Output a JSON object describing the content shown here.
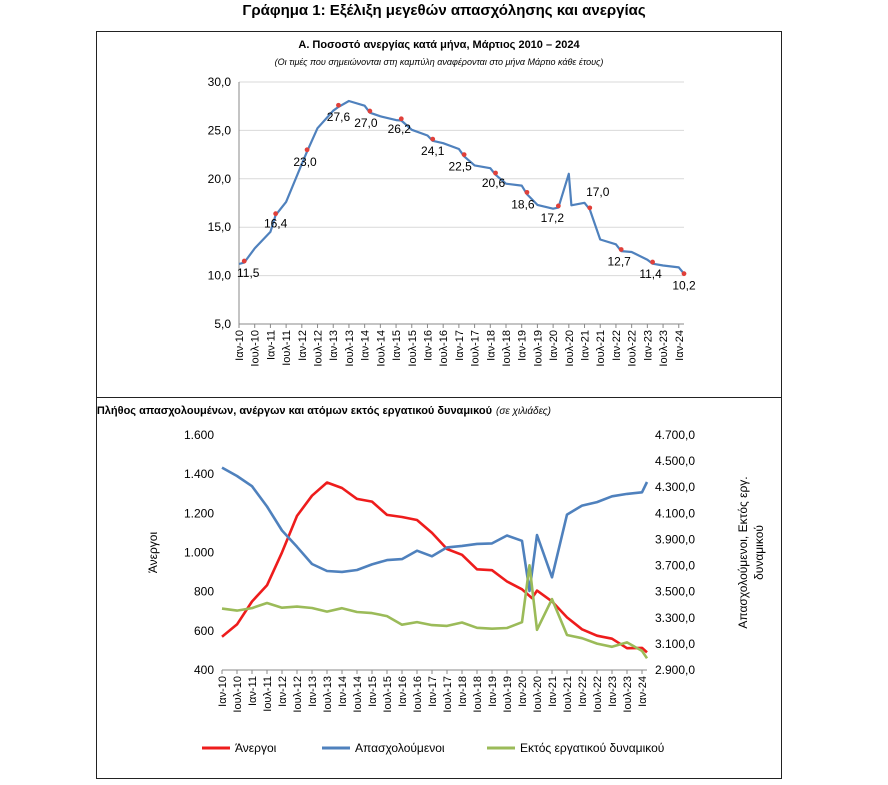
{
  "figure_title": "Γράφημα 1: Εξέλιξη μεγεθών απασχόλησης και ανεργίας",
  "colors": {
    "unemployment_rate": "#4f81bd",
    "marker": "#e0403a",
    "unemployed": "#ee1c1c",
    "employed": "#4f81bd",
    "inactive": "#9bbb59",
    "grid": "#d9d9d9"
  },
  "chart_data": [
    {
      "type": "line",
      "title": "Α. Ποσοστό ανεργίας κατά μήνα, Μάρτιος 2010 – 2024",
      "subtitle": "(Οι τιμές που σημειώνονται στη καμπύλη αναφέρονται στο μήνα Μάρτιο κάθε έτους)",
      "ylim": [
        5,
        30
      ],
      "yticks": [
        "5,0",
        "10,0",
        "15,0",
        "20,0",
        "25,0",
        "30,0"
      ],
      "ytick_values": [
        5,
        10,
        15,
        20,
        25,
        30
      ],
      "xticks": [
        "Ιαν-10",
        "Ιουλ-10",
        "Ιαν-11",
        "Ιουλ-11",
        "Ιαν-12",
        "Ιουλ-12",
        "Ιαν-13",
        "Ιουλ-13",
        "Ιαν-14",
        "Ιουλ-14",
        "Ιαν-15",
        "Ιουλ-15",
        "Ιαν-16",
        "Ιουλ-16",
        "Ιαν-17",
        "Ιουλ-17",
        "Ιαν-18",
        "Ιουλ-18",
        "Ιαν-19",
        "Ιουλ-19",
        "Ιαν-20",
        "Ιουλ-20",
        "Ιαν-21",
        "Ιουλ-21",
        "Ιαν-22",
        "Ιουλ-22",
        "Ιαν-23",
        "Ιουλ-23",
        "Ιαν-24"
      ],
      "grid": true,
      "series": [
        {
          "points": [
            [
              "Ιαν-10",
              11.2
            ],
            [
              "Μαρ-10",
              11.5
            ],
            [
              "Ιουλ-10",
              12.8
            ],
            [
              "Ιαν-11",
              14.5
            ],
            [
              "Μαρ-11",
              16.4
            ],
            [
              "Ιουλ-11",
              17.6
            ],
            [
              "Ιαν-12",
              21.5
            ],
            [
              "Μαρ-12",
              23.0
            ],
            [
              "Ιουλ-12",
              25.2
            ],
            [
              "Ιαν-13",
              27.0
            ],
            [
              "Μαρ-13",
              27.6
            ],
            [
              "Ιουλ-13",
              28.0
            ],
            [
              "Ιαν-14",
              27.5
            ],
            [
              "Μαρ-14",
              27.0
            ],
            [
              "Ιουλ-14",
              26.4
            ],
            [
              "Ιαν-15",
              26.0
            ],
            [
              "Μαρ-15",
              26.2
            ],
            [
              "Ιουλ-15",
              25.0
            ],
            [
              "Ιαν-16",
              24.4
            ],
            [
              "Μαρ-16",
              24.1
            ],
            [
              "Ιουλ-16",
              23.6
            ],
            [
              "Ιαν-17",
              23.0
            ],
            [
              "Μαρ-17",
              22.5
            ],
            [
              "Ιουλ-17",
              21.3
            ],
            [
              "Ιαν-18",
              21.0
            ],
            [
              "Μαρ-18",
              20.6
            ],
            [
              "Ιουλ-18",
              19.4
            ],
            [
              "Ιαν-19",
              19.2
            ],
            [
              "Μαρ-19",
              18.6
            ],
            [
              "Ιουλ-19",
              17.2
            ],
            [
              "Ιαν-20",
              16.8
            ],
            [
              "Μαρ-20",
              17.2
            ],
            [
              "Ιουλ-20",
              20.4
            ],
            [
              "Αυγ-20",
              17.2
            ],
            [
              "Ιαν-21",
              17.4
            ],
            [
              "Μαρ-21",
              17.0
            ],
            [
              "Ιουλ-21",
              13.6
            ],
            [
              "Ιαν-22",
              13.1
            ],
            [
              "Μαρ-22",
              12.7
            ],
            [
              "Ιουλ-22",
              12.3
            ],
            [
              "Ιαν-23",
              11.5
            ],
            [
              "Μαρ-23",
              11.4
            ],
            [
              "Ιουλ-23",
              10.9
            ],
            [
              "Ιαν-24",
              10.7
            ],
            [
              "Μαρ-24",
              10.2
            ]
          ]
        }
      ],
      "annotations": [
        {
          "x": "Μαρ-10",
          "y": 11.5,
          "label": "11,5"
        },
        {
          "x": "Μαρ-11",
          "y": 16.4,
          "label": "16,4"
        },
        {
          "x": "Μαρ-12",
          "y": 23.0,
          "label": "23,0"
        },
        {
          "x": "Μαρ-13",
          "y": 27.6,
          "label": "27,6"
        },
        {
          "x": "Μαρ-14",
          "y": 27.0,
          "label": "27,0"
        },
        {
          "x": "Μαρ-15",
          "y": 26.2,
          "label": "26,2"
        },
        {
          "x": "Μαρ-16",
          "y": 24.1,
          "label": "24,1"
        },
        {
          "x": "Μαρ-17",
          "y": 22.5,
          "label": "22,5"
        },
        {
          "x": "Μαρ-18",
          "y": 20.6,
          "label": "20,6"
        },
        {
          "x": "Μαρ-19",
          "y": 18.6,
          "label": "18,6"
        },
        {
          "x": "Μαρ-20",
          "y": 17.2,
          "label": "17,2"
        },
        {
          "x": "Μαρ-21",
          "y": 17.0,
          "label": "17,0"
        },
        {
          "x": "Μαρ-22",
          "y": 12.7,
          "label": "12,7"
        },
        {
          "x": "Μαρ-23",
          "y": 11.4,
          "label": "11,4"
        },
        {
          "x": "Μαρ-24",
          "y": 10.2,
          "label": "10,2"
        }
      ]
    },
    {
      "type": "line",
      "title": "Β. Πλήθος απασχολουμένων, ανέργων και ατόμων εκτός εργατικού δυναμικού",
      "title_note": "(σε χιλιάδες)",
      "ylabel": "Άνεργοι",
      "y2label": "Απασχολούμενοι, Εκτός εργ. δυναμικού",
      "ylim": [
        400,
        1600
      ],
      "y2lim": [
        2900,
        4700
      ],
      "yticks": [
        "400",
        "600",
        "800",
        "1.000",
        "1.200",
        "1.400",
        "1.600"
      ],
      "ytick_values": [
        400,
        600,
        800,
        1000,
        1200,
        1400,
        1600
      ],
      "y2ticks": [
        "2.900,0",
        "3.100,0",
        "3.300,0",
        "3.500,0",
        "3.700,0",
        "3.900,0",
        "4.100,0",
        "4.300,0",
        "4.500,0",
        "4.700,0"
      ],
      "y2tick_values": [
        2900,
        3100,
        3300,
        3500,
        3700,
        3900,
        4100,
        4300,
        4500,
        4700
      ],
      "xticks": [
        "Ιαν-10",
        "Ιουλ-10",
        "Ιαν-11",
        "Ιουλ-11",
        "Ιαν-12",
        "Ιουλ-12",
        "Ιαν-13",
        "Ιουλ-13",
        "Ιαν-14",
        "Ιουλ-14",
        "Ιαν-15",
        "Ιουλ-15",
        "Ιαν-16",
        "Ιουλ-16",
        "Ιαν-17",
        "Ιουλ-17",
        "Ιαν-18",
        "Ιουλ-18",
        "Ιαν-19",
        "Ιουλ-19",
        "Ιαν-20",
        "Ιουλ-20",
        "Ιαν-21",
        "Ιουλ-21",
        "Ιαν-22",
        "Ιουλ-22",
        "Ιαν-23",
        "Ιουλ-23",
        "Ιαν-24"
      ],
      "legend_position": "bottom",
      "series": [
        {
          "name": "Άνεργοι",
          "axis": "left",
          "points": [
            [
              "Ιαν-10",
              570
            ],
            [
              "Ιουλ-10",
              640
            ],
            [
              "Ιαν-11",
              740
            ],
            [
              "Ιουλ-11",
              840
            ],
            [
              "Ιαν-12",
              1000
            ],
            [
              "Ιουλ-12",
              1180
            ],
            [
              "Ιαν-13",
              1300
            ],
            [
              "Ιουλ-13",
              1350
            ],
            [
              "Ιαν-14",
              1330
            ],
            [
              "Ιουλ-14",
              1280
            ],
            [
              "Ιαν-15",
              1250
            ],
            [
              "Ιουλ-15",
              1200
            ],
            [
              "Ιαν-16",
              1180
            ],
            [
              "Ιουλ-16",
              1160
            ],
            [
              "Ιαν-17",
              1110
            ],
            [
              "Ιουλ-17",
              1010
            ],
            [
              "Ιαν-18",
              990
            ],
            [
              "Ιουλ-18",
              920
            ],
            [
              "Ιαν-19",
              900
            ],
            [
              "Ιουλ-19",
              860
            ],
            [
              "Ιαν-20",
              810
            ],
            [
              "Μαι-20",
              770
            ],
            [
              "Ιουλ-20",
              800
            ],
            [
              "Ιαν-21",
              760
            ],
            [
              "Ιουλ-21",
              660
            ],
            [
              "Ιαν-22",
              610
            ],
            [
              "Ιουλ-22",
              580
            ],
            [
              "Ιαν-23",
              550
            ],
            [
              "Ιουλ-23",
              520
            ],
            [
              "Ιαν-24",
              510
            ],
            [
              "Μαρ-24",
              490
            ]
          ]
        },
        {
          "name": "Απασχολούμενοι",
          "axis": "right",
          "points": [
            [
              "Ιαν-10",
              4450
            ],
            [
              "Ιουλ-10",
              4400
            ],
            [
              "Ιαν-11",
              4300
            ],
            [
              "Ιουλ-11",
              4150
            ],
            [
              "Ιαν-12",
              3980
            ],
            [
              "Ιουλ-12",
              3830
            ],
            [
              "Ιαν-13",
              3720
            ],
            [
              "Ιουλ-13",
              3660
            ],
            [
              "Ιαν-14",
              3640
            ],
            [
              "Ιουλ-14",
              3680
            ],
            [
              "Ιαν-15",
              3700
            ],
            [
              "Ιουλ-15",
              3740
            ],
            [
              "Ιαν-16",
              3760
            ],
            [
              "Ιουλ-16",
              3800
            ],
            [
              "Ιαν-17",
              3780
            ],
            [
              "Ιουλ-17",
              3840
            ],
            [
              "Ιαν-18",
              3840
            ],
            [
              "Ιουλ-18",
              3880
            ],
            [
              "Ιαν-19",
              3860
            ],
            [
              "Ιουλ-19",
              3930
            ],
            [
              "Ιαν-20",
              3900
            ],
            [
              "Απρ-20",
              3500
            ],
            [
              "Ιουλ-20",
              3920
            ],
            [
              "Ιαν-21",
              3620
            ],
            [
              "Ιουλ-21",
              4090
            ],
            [
              "Ιαν-22",
              4150
            ],
            [
              "Ιουλ-22",
              4200
            ],
            [
              "Ιαν-23",
              4220
            ],
            [
              "Ιουλ-23",
              4250
            ],
            [
              "Ιαν-24",
              4270
            ],
            [
              "Μαρ-24",
              4340
            ]
          ]
        },
        {
          "name": "Εκτός εργατικού δυναμικού",
          "axis": "right",
          "points": [
            [
              "Ιαν-10",
              3370
            ],
            [
              "Ιουλ-10",
              3360
            ],
            [
              "Ιαν-11",
              3380
            ],
            [
              "Ιουλ-11",
              3400
            ],
            [
              "Ιαν-12",
              3390
            ],
            [
              "Ιουλ-12",
              3380
            ],
            [
              "Ιαν-13",
              3370
            ],
            [
              "Ιουλ-13",
              3360
            ],
            [
              "Ιαν-14",
              3360
            ],
            [
              "Ιουλ-14",
              3350
            ],
            [
              "Ιαν-15",
              3340
            ],
            [
              "Ιουλ-15",
              3300
            ],
            [
              "Ιαν-16",
              3260
            ],
            [
              "Ιουλ-16",
              3260
            ],
            [
              "Ιαν-17",
              3240
            ],
            [
              "Ιουλ-17",
              3250
            ],
            [
              "Ιαν-18",
              3250
            ],
            [
              "Ιουλ-18",
              3230
            ],
            [
              "Ιαν-19",
              3220
            ],
            [
              "Ιουλ-19",
              3210
            ],
            [
              "Ιαν-20",
              3280
            ],
            [
              "Απρ-20",
              3710
            ],
            [
              "Ιουλ-20",
              3200
            ],
            [
              "Ιαν-21",
              3440
            ],
            [
              "Ιουλ-21",
              3180
            ],
            [
              "Ιαν-22",
              3130
            ],
            [
              "Ιουλ-22",
              3110
            ],
            [
              "Ιαν-23",
              3080
            ],
            [
              "Ιουλ-23",
              3100
            ],
            [
              "Ιαν-24",
              3060
            ],
            [
              "Μαρ-24",
              2990
            ]
          ]
        }
      ]
    }
  ]
}
